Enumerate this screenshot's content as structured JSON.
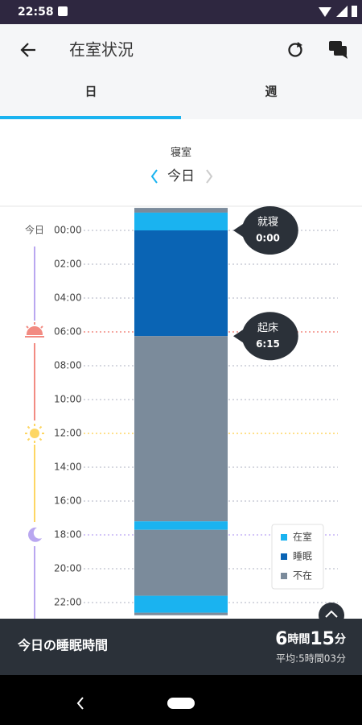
{
  "status_bar": {
    "time": "22:58"
  },
  "header": {
    "title": "在室状況"
  },
  "tabs": [
    "日",
    "週"
  ],
  "room": {
    "name": "寝室",
    "date": "今日"
  },
  "timeline": {
    "day_label": "今日",
    "time_labels": [
      "00:00",
      "02:00",
      "04:00",
      "06:00",
      "08:00",
      "10:00",
      "12:00",
      "14:00",
      "16:00",
      "18:00",
      "20:00",
      "22:00"
    ],
    "segments": [
      {
        "color": "#7b8b9b",
        "start": -1.33,
        "end": -1.05
      },
      {
        "color": "#1ab3f0",
        "start": -1.05,
        "end": 0
      },
      {
        "color": "#0a64b4",
        "start": 0,
        "end": 6.25
      },
      {
        "color": "#7b8b9b",
        "start": 6.25,
        "end": 17.2
      },
      {
        "color": "#1ab3f0",
        "start": 17.2,
        "end": 17.7
      },
      {
        "color": "#7b8b9b",
        "start": 17.7,
        "end": 21.6
      },
      {
        "color": "#1ab3f0",
        "start": 21.6,
        "end": 22.6
      },
      {
        "color": "#7b8b9b",
        "start": 22.6,
        "end": 22.75
      }
    ],
    "callouts": [
      {
        "label": "就寝",
        "time": "0:00",
        "at": 0
      },
      {
        "label": "起床",
        "time": "6:15",
        "at": 6.25
      }
    ],
    "legend": [
      {
        "name": "在室",
        "color": "#1ab3f0"
      },
      {
        "name": "睡眠",
        "color": "#0a64b4"
      },
      {
        "name": "不在",
        "color": "#7b8b9b"
      }
    ]
  },
  "summary": {
    "label": "今日の睡眠時間",
    "hours": "6",
    "hours_unit": "時間",
    "minutes": "15",
    "minutes_unit": "分",
    "average": "平均:5時間03分"
  }
}
